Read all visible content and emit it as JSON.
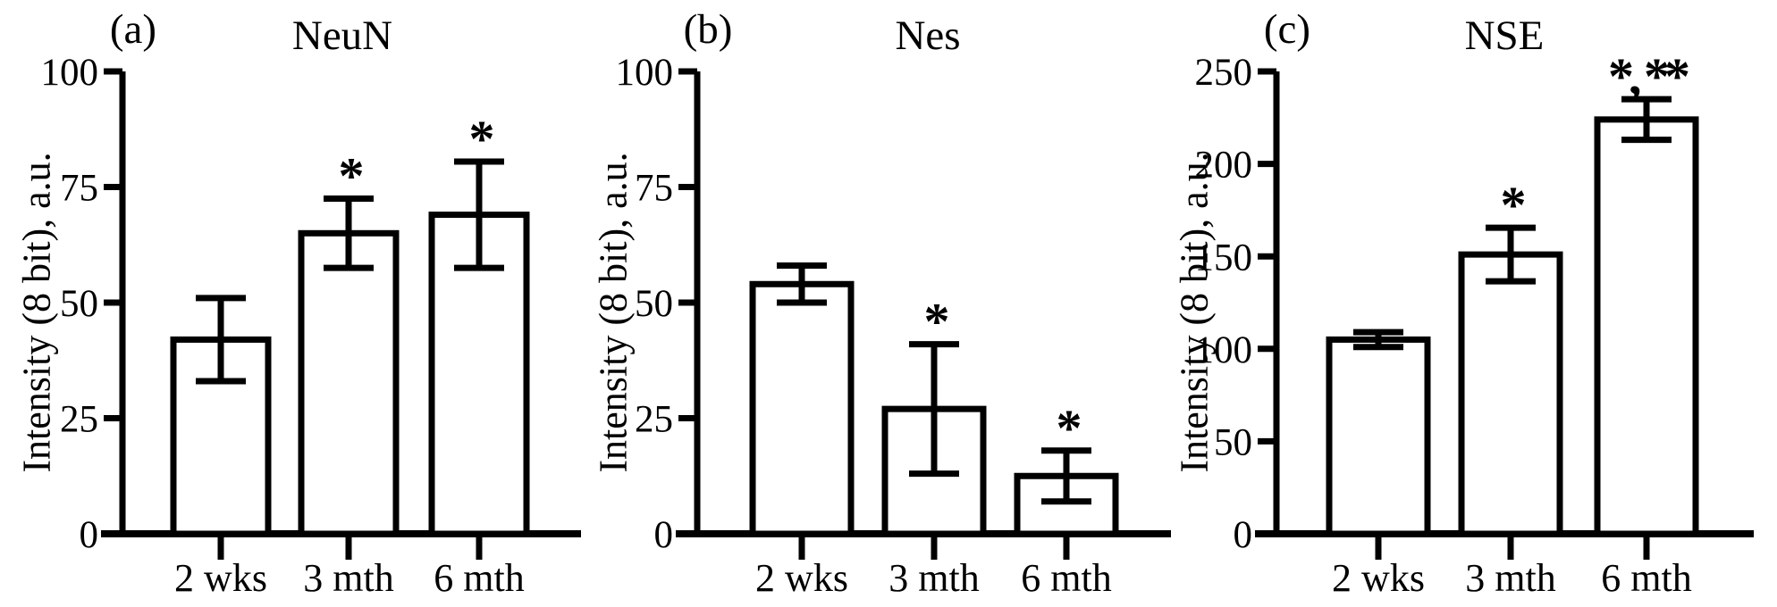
{
  "figure": {
    "background": "#ffffff",
    "ink": "#000000",
    "bar_fill": "#ffffff"
  },
  "chart_data": [
    {
      "type": "bar",
      "panel_label": "(a)",
      "title": "NeuN",
      "ylabel": "Intensity (8 bit), a.u.",
      "xlabel": "",
      "categories": [
        "2 wks",
        "3 mth",
        "6 mth"
      ],
      "values": [
        42,
        65,
        69
      ],
      "errors": [
        9,
        7.5,
        11.5
      ],
      "annotations": [
        "",
        "*",
        "*"
      ],
      "ylim": [
        0,
        100
      ],
      "yticks": [
        0,
        25,
        50,
        75,
        100
      ],
      "grid": false,
      "legend": false
    },
    {
      "type": "bar",
      "panel_label": "(b)",
      "title": "Nes",
      "ylabel": "Intensity (8 bit), a.u.",
      "xlabel": "",
      "categories": [
        "2 wks",
        "3 mth",
        "6 mth"
      ],
      "values": [
        54,
        27,
        12.5
      ],
      "errors": [
        4,
        14,
        5.5
      ],
      "annotations": [
        "",
        "*",
        "*"
      ],
      "ylim": [
        0,
        100
      ],
      "yticks": [
        0,
        25,
        50,
        75,
        100
      ],
      "grid": false,
      "legend": false
    },
    {
      "type": "bar",
      "panel_label": "(c)",
      "title": "NSE",
      "ylabel": "Intensity (8 bit), a.u.",
      "xlabel": "",
      "categories": [
        "2 wks",
        "3 mth",
        "6 mth"
      ],
      "values": [
        105,
        151,
        224
      ],
      "errors": [
        4,
        14.5,
        11
      ],
      "annotations": [
        "",
        "*",
        "*, **"
      ],
      "ylim": [
        0,
        250
      ],
      "yticks": [
        0,
        50,
        100,
        150,
        200,
        250
      ],
      "grid": false,
      "legend": false
    }
  ]
}
